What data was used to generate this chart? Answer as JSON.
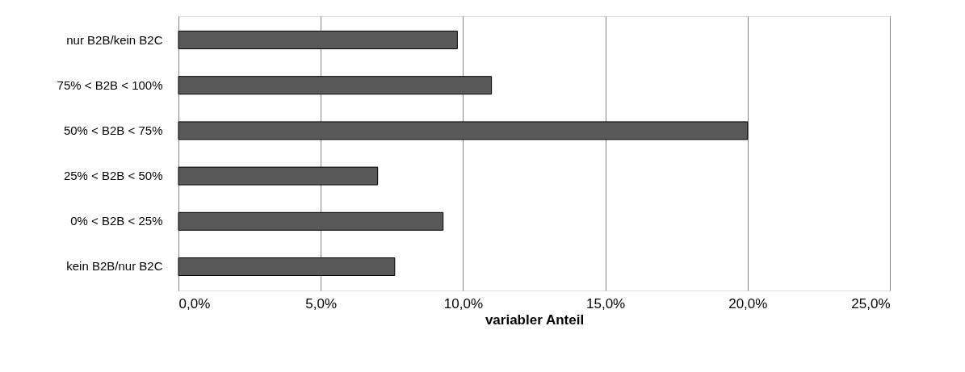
{
  "chart_data": {
    "type": "bar",
    "orientation": "horizontal",
    "xlabel": "variabler Anteil",
    "categories": [
      "nur B2B/kein B2C",
      "75% < B2B < 100%",
      "50% < B2B <   75%",
      "25% < B2B <   50%",
      "0% < B2B <   25%",
      "kein B2B/nur B2C"
    ],
    "values": [
      0.098,
      0.11,
      0.2,
      0.07,
      0.093,
      0.076
    ],
    "color": "#595959",
    "xlim": [
      0,
      0.25
    ],
    "xticks": [
      {
        "value": 0,
        "label": "0,0%"
      },
      {
        "value": 0.05,
        "label": "5,0%"
      },
      {
        "value": 0.1,
        "label": "10,0%"
      },
      {
        "value": 0.15,
        "label": "15,0%"
      },
      {
        "value": 0.2,
        "label": "20,0%"
      },
      {
        "value": 0.25,
        "label": "25,0%"
      }
    ],
    "grid": "x"
  }
}
